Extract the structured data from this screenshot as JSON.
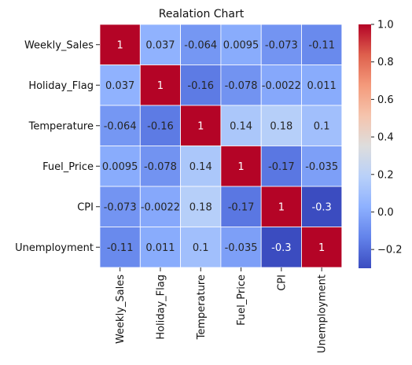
{
  "chart_data": {
    "type": "heatmap",
    "title": "Realation Chart",
    "xlabel": "",
    "ylabel": "",
    "row_labels": [
      "Weekly_Sales",
      "Holiday_Flag",
      "Temperature",
      "Fuel_Price",
      "CPI",
      "Unemployment"
    ],
    "col_labels": [
      "Weekly_Sales",
      "Holiday_Flag",
      "Temperature",
      "Fuel_Price",
      "CPI",
      "Unemployment"
    ],
    "values": [
      [
        1,
        0.037,
        -0.064,
        0.0095,
        -0.073,
        -0.11
      ],
      [
        0.037,
        1,
        -0.16,
        -0.078,
        -0.0022,
        0.011
      ],
      [
        -0.064,
        -0.16,
        1,
        0.14,
        0.18,
        0.1
      ],
      [
        0.0095,
        -0.078,
        0.14,
        1,
        -0.17,
        -0.035
      ],
      [
        -0.073,
        -0.0022,
        0.18,
        -0.17,
        1,
        -0.3
      ],
      [
        -0.11,
        0.011,
        0.1,
        -0.035,
        -0.3,
        1
      ]
    ],
    "annotations": [
      [
        "1",
        "0.037",
        "-0.064",
        "0.0095",
        "-0.073",
        "-0.11"
      ],
      [
        "0.037",
        "1",
        "-0.16",
        "-0.078",
        "-0.0022",
        "0.011"
      ],
      [
        "-0.064",
        "-0.16",
        "1",
        "0.14",
        "0.18",
        "0.1"
      ],
      [
        "0.0095",
        "-0.078",
        "0.14",
        "1",
        "-0.17",
        "-0.035"
      ],
      [
        "-0.073",
        "-0.0022",
        "0.18",
        "-0.17",
        "1",
        "-0.3"
      ],
      [
        "-0.11",
        "0.011",
        "0.1",
        "-0.035",
        "-0.3",
        "1"
      ]
    ],
    "colormap": "coolwarm",
    "vmin": -0.3,
    "vmax": 1,
    "colorbar_ticks": [
      1.0,
      0.8,
      0.6,
      0.4,
      0.2,
      0.0,
      -0.2
    ],
    "colorbar_tick_labels": [
      "1.0",
      "0.8",
      "0.6",
      "0.4",
      "0.2",
      "0.0",
      "−0.2"
    ],
    "cell_border_color": "#ffffff",
    "grid": false
  }
}
